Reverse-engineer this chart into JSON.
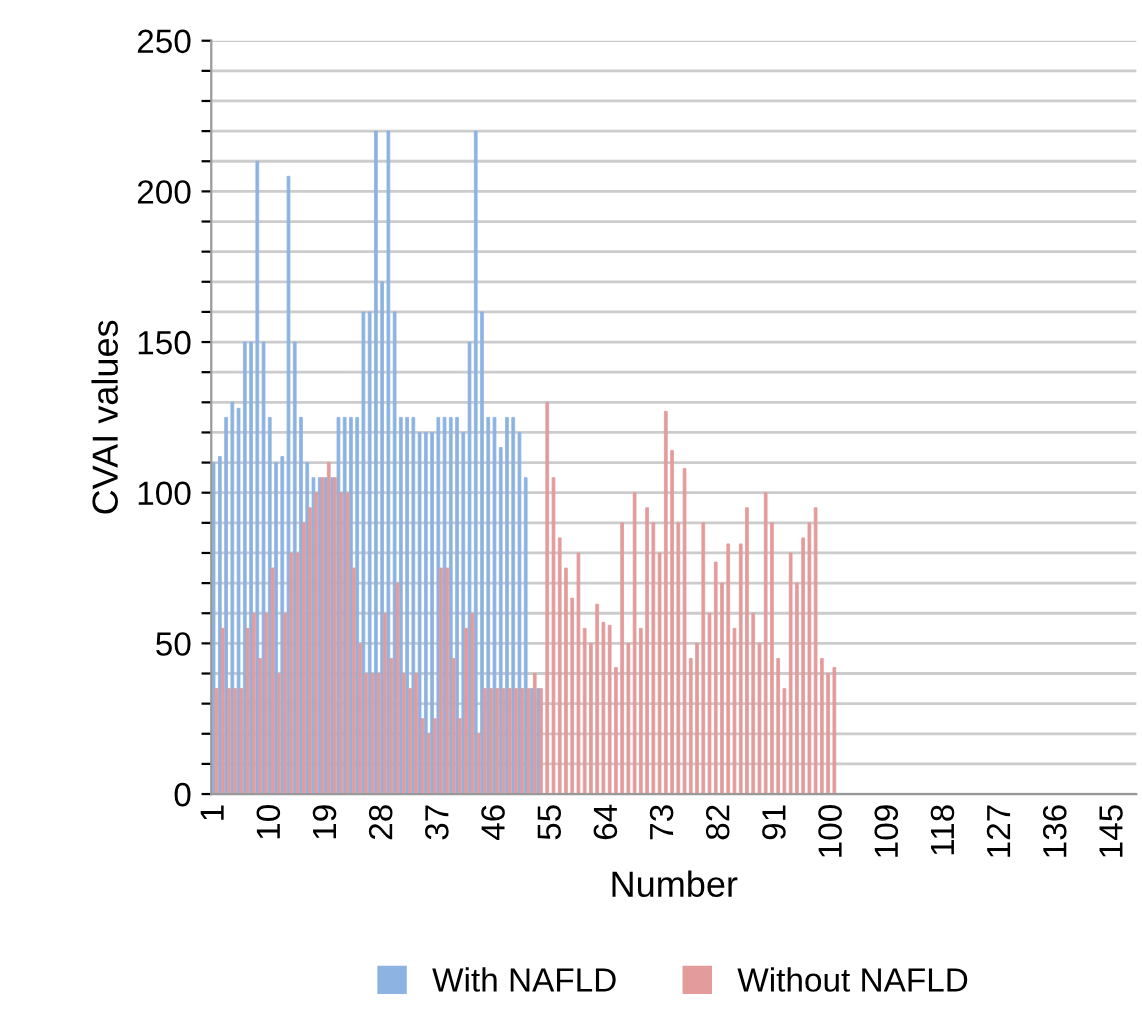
{
  "chart_data": {
    "type": "bar",
    "categories": [
      "1",
      null,
      null,
      null,
      null,
      null,
      null,
      null,
      null,
      "10",
      null,
      null,
      null,
      null,
      null,
      null,
      null,
      null,
      "19",
      null,
      null,
      null,
      null,
      null,
      null,
      null,
      null,
      "28",
      null,
      null,
      null,
      null,
      null,
      null,
      null,
      null,
      "37",
      null,
      null,
      null,
      null,
      null,
      null,
      null,
      null,
      "46",
      null,
      null,
      null,
      null,
      null,
      null,
      null,
      null,
      "55",
      null,
      null,
      null,
      null,
      null,
      null,
      null,
      null,
      "64",
      null,
      null,
      null,
      null,
      null,
      null,
      null,
      null,
      "73",
      null,
      null,
      null,
      null,
      null,
      null,
      null,
      null,
      "82",
      null,
      null,
      null,
      null,
      null,
      null,
      null,
      null,
      "91",
      null,
      null,
      null,
      null,
      null,
      null,
      null,
      null,
      "100",
      null,
      null,
      null,
      null,
      null,
      null,
      null,
      null,
      "109",
      null,
      null,
      null,
      null,
      null,
      null,
      null,
      null,
      "118",
      null,
      null,
      null,
      null,
      null,
      null,
      null,
      null,
      "127",
      null,
      null,
      null,
      null,
      null,
      null,
      null,
      null,
      "136",
      null,
      null,
      null,
      null,
      null,
      null,
      null,
      null,
      "145",
      null,
      null,
      null
    ],
    "series": [
      {
        "name": "With NAFLD",
        "color": "#8db3e2",
        "values": [
          110,
          112,
          125,
          130,
          128,
          150,
          150,
          210,
          150,
          125,
          110,
          112,
          205,
          150,
          125,
          110,
          105,
          105,
          105,
          105,
          125,
          125,
          125,
          125,
          160,
          160,
          220,
          170,
          220,
          160,
          125,
          125,
          125,
          120,
          120,
          120,
          125,
          125,
          125,
          125,
          120,
          150,
          220,
          160,
          125,
          125,
          115,
          125,
          125,
          120,
          105,
          35,
          35,
          null,
          null,
          null,
          null,
          null,
          null,
          null,
          null,
          null,
          null,
          null,
          null,
          null,
          null,
          null,
          null,
          null,
          null,
          null,
          null,
          null,
          null,
          null,
          null,
          null,
          null,
          null,
          null,
          null,
          null,
          null,
          null,
          null,
          null,
          null,
          null,
          null,
          null,
          null,
          null,
          null,
          null,
          null,
          null,
          null,
          null,
          null,
          null,
          null,
          null,
          null,
          null,
          null,
          null,
          null,
          null,
          null,
          null,
          null,
          null,
          null,
          null,
          null,
          null,
          null,
          null,
          null,
          null,
          null,
          null,
          null,
          null,
          null,
          null,
          null,
          null,
          null,
          null,
          null,
          null,
          null,
          null,
          null,
          null,
          null,
          null,
          null,
          null,
          null,
          null,
          null,
          null,
          null,
          null,
          null
        ]
      },
      {
        "name": "Without NAFLD",
        "color": "#e39b9b",
        "values": [
          35,
          55,
          35,
          35,
          35,
          55,
          60,
          45,
          60,
          75,
          40,
          60,
          80,
          80,
          90,
          95,
          100,
          105,
          110,
          105,
          100,
          100,
          75,
          50,
          40,
          40,
          40,
          60,
          45,
          70,
          40,
          35,
          40,
          25,
          20,
          25,
          75,
          75,
          45,
          25,
          55,
          60,
          20,
          35,
          35,
          35,
          35,
          35,
          35,
          35,
          35,
          40,
          35,
          130,
          105,
          85,
          75,
          65,
          80,
          55,
          50,
          63,
          57,
          56,
          42,
          90,
          50,
          100,
          55,
          95,
          90,
          80,
          127,
          114,
          90,
          108,
          45,
          50,
          90,
          60,
          77,
          70,
          83,
          55,
          83,
          95,
          60,
          50,
          100,
          90,
          45,
          35,
          80,
          70,
          85,
          90,
          95,
          45,
          40,
          42,
          null,
          null,
          null,
          null,
          null,
          null,
          null,
          null,
          null,
          null,
          null,
          null,
          null,
          null,
          null,
          null,
          null,
          null,
          null,
          null,
          null,
          null,
          null,
          null,
          null,
          null,
          null,
          null,
          null,
          null,
          null,
          null,
          null,
          null,
          null,
          null,
          null,
          null,
          null,
          null,
          null,
          null,
          null,
          null,
          null,
          null,
          null,
          null
        ]
      }
    ],
    "ylabel": "CVAI values",
    "xlabel": "Number",
    "ylim": [
      0,
      250
    ],
    "yticks": [
      0,
      {
        "value": 10,
        "label": null
      },
      {
        "value": 20,
        "label": null
      },
      {
        "value": 30,
        "label": null
      },
      {
        "value": 40,
        "label": null
      },
      50,
      {
        "value": 60,
        "label": null
      },
      {
        "value": 70,
        "label": null
      },
      {
        "value": 80,
        "label": null
      },
      {
        "value": 90,
        "label": null
      },
      100,
      {
        "value": 110,
        "label": null
      },
      {
        "value": 120,
        "label": null
      },
      {
        "value": 130,
        "label": null
      },
      {
        "value": 140,
        "label": null
      },
      150,
      {
        "value": 160,
        "label": null
      },
      {
        "value": 170,
        "label": null
      },
      {
        "value": 180,
        "label": null
      },
      {
        "value": 190,
        "label": null
      },
      200,
      {
        "value": 210,
        "label": null
      },
      {
        "value": 220,
        "label": null
      },
      {
        "value": 230,
        "label": null
      },
      {
        "value": 240,
        "label": null
      },
      250
    ],
    "grid": "y",
    "legend": "bottom"
  }
}
